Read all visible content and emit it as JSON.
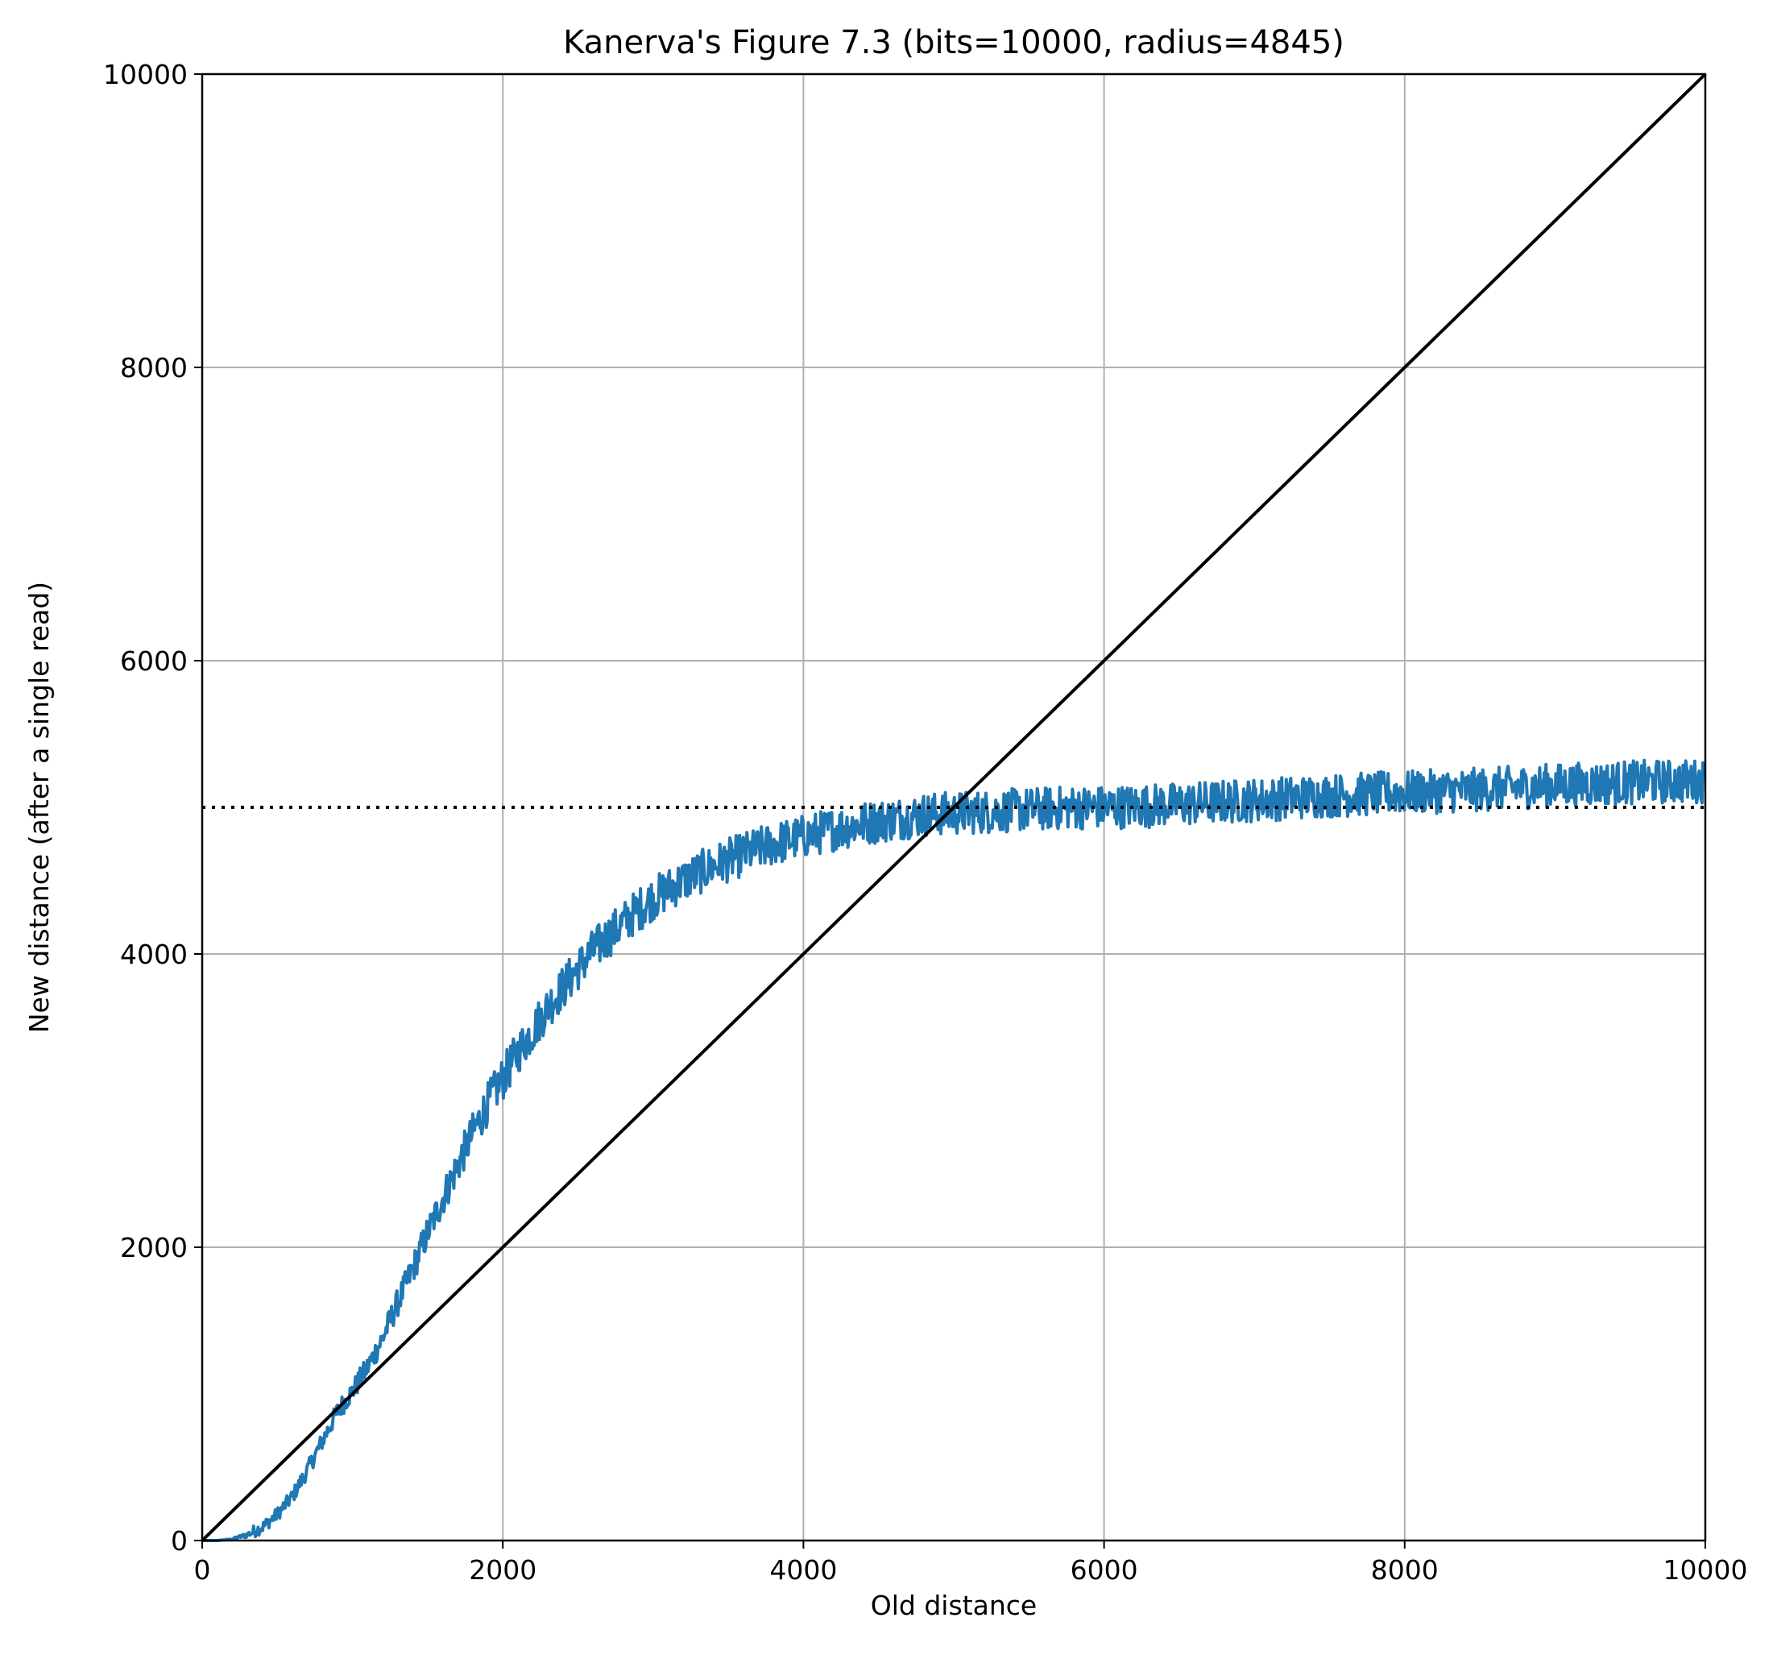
{
  "chart_data": {
    "type": "line",
    "title": "Kanerva's Figure 7.3 (bits=10000, radius=4845)",
    "xlabel": "Old distance",
    "ylabel": "New distance (after a single read)",
    "xlim": [
      0,
      10000
    ],
    "ylim": [
      0,
      10000
    ],
    "xticks": [
      "0",
      "2000",
      "4000",
      "6000",
      "8000",
      "10000"
    ],
    "yticks": [
      "0",
      "2000",
      "4000",
      "6000",
      "8000",
      "10000"
    ],
    "grid": true,
    "series": [
      {
        "kind": "noisy-curve",
        "color": "#1f77b4",
        "x": [
          0,
          100,
          200,
          300,
          400,
          500,
          600,
          700,
          800,
          900,
          1000,
          1100,
          1200,
          1300,
          1400,
          1500,
          1600,
          1700,
          1800,
          1900,
          2000,
          2100,
          2200,
          2300,
          2400,
          2500,
          2600,
          2700,
          2800,
          2900,
          3000,
          3200,
          3400,
          3600,
          3800,
          4000,
          4200,
          4400,
          4600,
          4800,
          5000,
          5200,
          5400,
          5600,
          5800,
          6000,
          6500,
          7000,
          7500,
          8000,
          8500,
          9000,
          9500,
          10000
        ],
        "y": [
          0,
          0,
          10,
          40,
          90,
          180,
          300,
          480,
          680,
          880,
          1020,
          1180,
          1380,
          1620,
          1850,
          2100,
          2330,
          2560,
          2780,
          2980,
          3150,
          3330,
          3480,
          3640,
          3770,
          3900,
          4020,
          4120,
          4210,
          4300,
          4380,
          4500,
          4600,
          4680,
          4750,
          4800,
          4850,
          4890,
          4920,
          4950,
          4960,
          4970,
          4980,
          4990,
          5000,
          5000,
          5020,
          5050,
          5080,
          5100,
          5120,
          5150,
          5170,
          5180
        ]
      },
      {
        "kind": "identity-line",
        "color": "#000000",
        "x": [
          0,
          10000
        ],
        "y": [
          0,
          10000
        ]
      },
      {
        "kind": "reference-dotted",
        "color": "#000000",
        "x": [
          0,
          10000
        ],
        "y": [
          5000,
          5000
        ]
      }
    ]
  }
}
